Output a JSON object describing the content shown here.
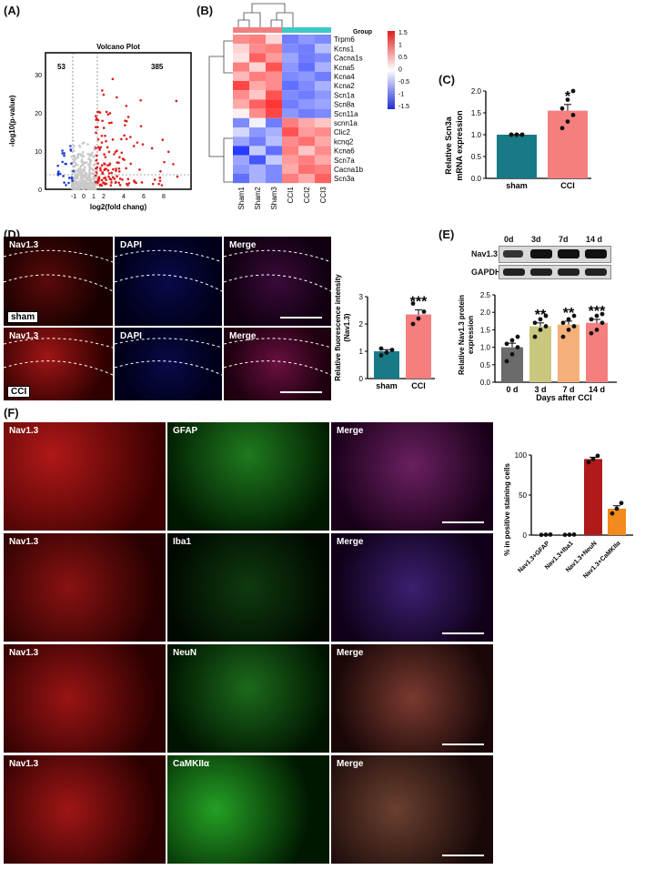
{
  "panels": {
    "A": "(A)",
    "B": "(B)",
    "C": "(C)",
    "D": "(D)",
    "E": "(E)",
    "F": "(F)"
  },
  "volcano": {
    "title": "Volcano Plot",
    "xlabel": "log2(fold chang)",
    "ylabel": "-log10(p-value)",
    "down_count": "53",
    "up_count": "385",
    "xticks": [
      "-1",
      "0",
      "1",
      "2",
      "4",
      "6",
      "8"
    ],
    "yticks": [
      "0",
      "10",
      "20",
      "30"
    ],
    "colors": {
      "down": "#1f3fd6",
      "up": "#e01b1b",
      "ns": "#c8c8c8"
    }
  },
  "heatmap": {
    "legend_title": "Group",
    "scale_ticks": [
      "1.5",
      "1",
      "0.5",
      "0",
      "-0.5",
      "-1",
      "-1.5"
    ],
    "genes": [
      "Trpm6",
      "Kcns1",
      "Cacna1s",
      "Kcna5",
      "Kcna4",
      "Kcna2",
      "Scn1a",
      "Scn8a",
      "Scn11a",
      "scnn1a",
      "Clic2",
      "kcnq2",
      "Kcna6",
      "Scn7a",
      "Cacna1b",
      "Scn3a"
    ],
    "samples": [
      "Sham1",
      "Sham2",
      "Sham3",
      "CCI1",
      "CCI2",
      "CCI3"
    ],
    "values": [
      [
        0.8,
        0.9,
        0.3,
        -1.0,
        -0.8,
        -0.9
      ],
      [
        0.3,
        0.8,
        0.9,
        -0.9,
        -1.0,
        -0.5
      ],
      [
        0.2,
        1.1,
        0.7,
        -0.7,
        -1.0,
        -0.9
      ],
      [
        0.9,
        0.3,
        1.2,
        -0.8,
        -1.1,
        -0.6
      ],
      [
        0.5,
        0.9,
        0.8,
        -0.9,
        -0.8,
        -1.0
      ],
      [
        1.3,
        0.6,
        0.8,
        -1.1,
        -0.9,
        -0.6
      ],
      [
        0.8,
        0.4,
        1.2,
        -0.9,
        -1.0,
        -0.8
      ],
      [
        0.6,
        1.1,
        1.4,
        -1.0,
        -0.8,
        -0.7
      ],
      [
        0.1,
        0.8,
        1.3,
        -0.8,
        -1.0,
        -0.9
      ],
      [
        -0.9,
        -0.1,
        -1.0,
        0.9,
        0.6,
        0.4
      ],
      [
        -0.3,
        -0.8,
        -0.6,
        1.2,
        0.7,
        0.8
      ],
      [
        -0.7,
        -1.0,
        -0.5,
        0.8,
        1.0,
        0.6
      ],
      [
        -1.5,
        -0.4,
        -1.1,
        0.9,
        0.4,
        0.8
      ],
      [
        -0.7,
        -1.3,
        -0.4,
        0.7,
        0.9,
        0.6
      ],
      [
        -0.8,
        -0.6,
        -0.9,
        0.6,
        1.0,
        0.9
      ],
      [
        -1.1,
        -0.6,
        -0.9,
        0.9,
        0.6,
        1.1
      ]
    ],
    "group_colors": {
      "sham": "#f08080",
      "cci": "#3ec7c7"
    }
  },
  "chart_c": {
    "ylabel_line1": "Relative Scn3a",
    "ylabel_line2": "mRNA expression",
    "yticks": [
      "0.0",
      "0.5",
      "1.0",
      "1.5",
      "2.0"
    ],
    "significance": "*"
  },
  "panel_d": {
    "channels": [
      "Nav1.3",
      "DAPI",
      "Merge"
    ],
    "sham_tag": "sham",
    "cci_tag": "CCI",
    "ylabel_line1": "Relative fluorescence intensity",
    "ylabel_line2": "(Nav1.3)",
    "yticks": [
      "0",
      "1",
      "2",
      "3"
    ],
    "significance": "***"
  },
  "panel_e": {
    "blot_days": [
      "0d",
      "3d",
      "7d",
      "14 d"
    ],
    "blot_rows": [
      "Nav1.3",
      "GAPDH"
    ],
    "ylabel_line1": "Relative Nav1.3 protein",
    "ylabel_line2": "expression",
    "xlabel": "Days after CCI",
    "yticks": [
      "0.0",
      "0.5",
      "1.0",
      "1.5",
      "2.0",
      "2.5"
    ],
    "significance": [
      "",
      "**",
      "**",
      "***"
    ]
  },
  "panel_f": {
    "rows": [
      {
        "marker": "Nav1.3",
        "partner": "GFAP",
        "merge": "Merge"
      },
      {
        "marker": "Nav1.3",
        "partner": "Iba1",
        "merge": "Merge"
      },
      {
        "marker": "Nav1.3",
        "partner": "NeuN",
        "merge": "Merge"
      },
      {
        "marker": "Nav1.3",
        "partner": "CaMKIIα",
        "merge": "Merge"
      }
    ],
    "ylabel": "% in positive staining cells",
    "yticks": [
      "0",
      "50",
      "100"
    ]
  },
  "chart_data": [
    {
      "type": "bar",
      "categories": [
        "sham",
        "CCI"
      ],
      "values": [
        1.0,
        1.55
      ],
      "points": [
        [
          1.0,
          1.0,
          1.0,
          1.0,
          1.0,
          1.0
        ],
        [
          1.15,
          1.3,
          1.45,
          1.6,
          1.8,
          2.0
        ]
      ],
      "ylabel": "Relative Scn3a mRNA expression",
      "ylim": [
        0,
        2.0
      ],
      "colors": [
        "#177a86",
        "#f57f7f"
      ]
    },
    {
      "type": "bar",
      "categories": [
        "sham",
        "CCI"
      ],
      "values": [
        1.0,
        2.35
      ],
      "points": [
        [
          0.85,
          0.95,
          1.05,
          1.1
        ],
        [
          2.0,
          2.2,
          2.45,
          2.75
        ]
      ],
      "ylabel": "Relative fluorescence intensity (Nav1.3)",
      "ylim": [
        0,
        3
      ],
      "colors": [
        "#177a86",
        "#f57f7f"
      ]
    },
    {
      "type": "bar",
      "categories": [
        "0 d",
        "3 d",
        "7 d",
        "14 d"
      ],
      "values": [
        1.0,
        1.6,
        1.65,
        1.7
      ],
      "points": [
        [
          0.6,
          0.8,
          1.0,
          1.1,
          1.2,
          1.3
        ],
        [
          1.3,
          1.5,
          1.6,
          1.7,
          1.8,
          1.9
        ],
        [
          1.3,
          1.5,
          1.6,
          1.7,
          1.8,
          1.9
        ],
        [
          1.4,
          1.5,
          1.7,
          1.8,
          1.9,
          1.95
        ]
      ],
      "xlabel": "Days after CCI",
      "ylabel": "Relative Nav1.3 protein expression",
      "ylim": [
        0,
        2.5
      ],
      "colors": [
        "#6b6b6b",
        "#c9c77d",
        "#f5b07a",
        "#f57f7f"
      ]
    },
    {
      "type": "bar",
      "categories": [
        "Nav1.3+GFAP",
        "Nav1.3+Iba1",
        "Nav1.3+NeuN",
        "Nav1.3+CaMKIIα"
      ],
      "values": [
        0.5,
        0.5,
        95,
        33
      ],
      "points": [
        [
          0.3,
          0.5,
          0.7
        ],
        [
          0.3,
          0.5,
          0.7
        ],
        [
          91,
          95,
          99
        ],
        [
          27,
          33,
          40
        ]
      ],
      "ylabel": "% in positive staining cells",
      "ylim": [
        0,
        100
      ],
      "colors": [
        "#555555",
        "#555555",
        "#b01a1a",
        "#f28a1e"
      ]
    }
  ]
}
